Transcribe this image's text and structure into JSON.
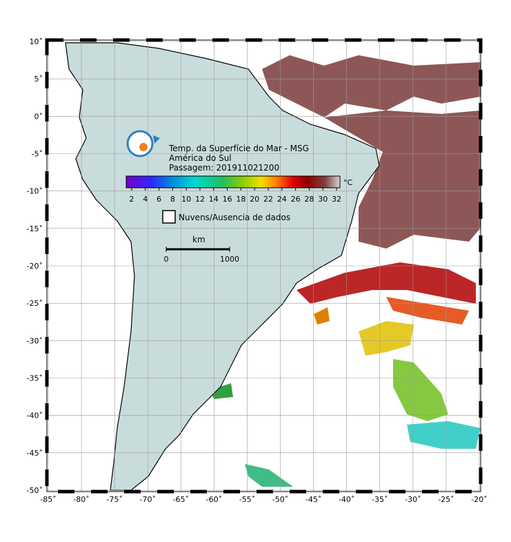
{
  "map": {
    "title_lines": [
      "Temp. da Superfície do Mar - MSG",
      "América do Sul",
      "Passagem: 201911021200"
    ],
    "colorbar": {
      "unit": "°C",
      "lim": [
        1.2,
        32.5
      ],
      "ticks": [
        2,
        4,
        6,
        8,
        10,
        12,
        14,
        16,
        18,
        20,
        22,
        24,
        26,
        28,
        30,
        32
      ]
    },
    "legend": "Nuvens/Ausencia de dados",
    "scale": {
      "unit": "km",
      "ticks": [
        0,
        1000
      ]
    },
    "lonlim": [
      -85,
      -20
    ],
    "latlim": [
      -50,
      10
    ],
    "lon_ticks": [
      {
        "value": -85,
        "label": "-85˚"
      },
      {
        "value": -80,
        "label": "-80˚"
      },
      {
        "value": -75,
        "label": "-75˚"
      },
      {
        "value": -70,
        "label": "-70˚"
      },
      {
        "value": -65,
        "label": "-65˚"
      },
      {
        "value": -60,
        "label": "-60˚"
      },
      {
        "value": -55,
        "label": "-55˚"
      },
      {
        "value": -50,
        "label": "-50˚"
      },
      {
        "value": -45,
        "label": "-45˚"
      },
      {
        "value": -40,
        "label": "-40˚"
      },
      {
        "value": -35,
        "label": "-35˚"
      },
      {
        "value": -30,
        "label": "-30˚"
      },
      {
        "value": -25,
        "label": "-25˚"
      },
      {
        "value": -20,
        "label": "-20˚"
      }
    ],
    "lat_ticks": [
      {
        "value": 10,
        "label": "10˚"
      },
      {
        "value": 5,
        "label": "5˚"
      },
      {
        "value": 0,
        "label": "0˚"
      },
      {
        "value": -5,
        "label": "-5˚"
      },
      {
        "value": -10,
        "label": "-10˚"
      },
      {
        "value": -15,
        "label": "-15˚"
      },
      {
        "value": -20,
        "label": "-20˚"
      },
      {
        "value": -25,
        "label": "-25˚"
      },
      {
        "value": -30,
        "label": "-30˚"
      },
      {
        "value": -35,
        "label": "-35˚"
      },
      {
        "value": -40,
        "label": "-40˚"
      },
      {
        "value": -45,
        "label": "-45˚"
      },
      {
        "value": -50,
        "label": "-50˚"
      }
    ]
  }
}
